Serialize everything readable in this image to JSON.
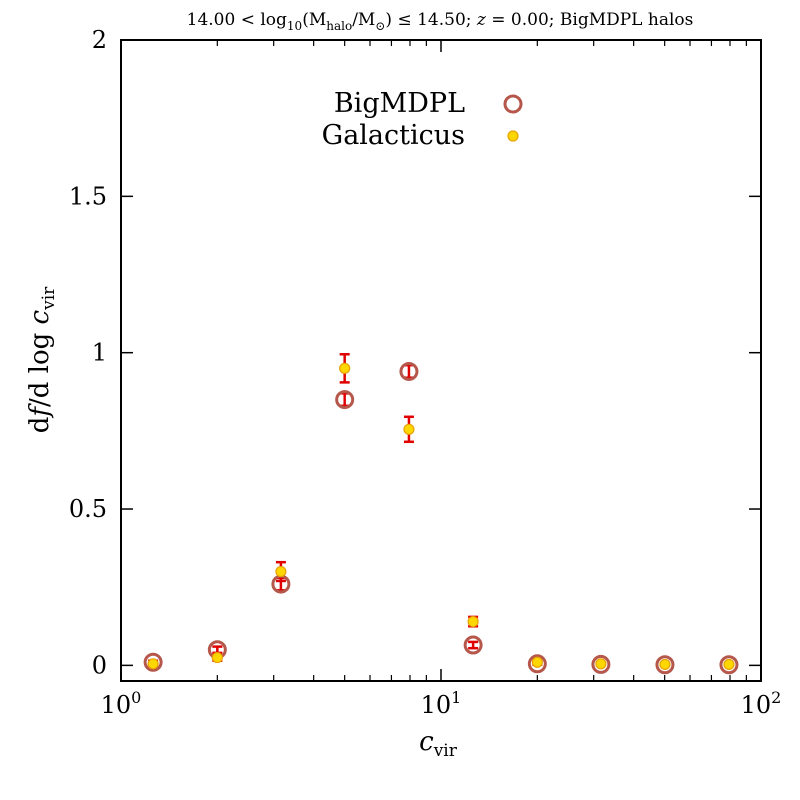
{
  "chart_data": {
    "type": "scatter",
    "title": "14.00 < log10(Mhalo/M⊙) ≤ 14.50; z = 0.00; BigMDPL halos",
    "title_parts": {
      "lower": "14.00 < log",
      "log_sub": "10",
      "mass": "(M",
      "mass_sub": "halo",
      "sun": "/M",
      "sun_sub": "⊙",
      "upper": ") ≤ 14.50; ",
      "z_var": "z",
      "rest": " = 0.00; BigMDPL halos"
    },
    "xlabel": {
      "var": "c",
      "sub": "vir"
    },
    "ylabel": {
      "prefix": "d",
      "var": "f",
      "mid": "/d log ",
      "var2": "c",
      "sub": "vir"
    },
    "xscale": "log",
    "xlim": [
      1,
      100
    ],
    "ylim": [
      -0.05,
      2.0
    ],
    "x_ticks": [
      {
        "value": 1,
        "base": "10",
        "exp": "0"
      },
      {
        "value": 10,
        "base": "10",
        "exp": "1"
      },
      {
        "value": 100,
        "base": "10",
        "exp": "2"
      }
    ],
    "y_ticks": [
      {
        "value": 0,
        "label": "0"
      },
      {
        "value": 0.5,
        "label": "0.5"
      },
      {
        "value": 1.0,
        "label": "1"
      },
      {
        "value": 1.5,
        "label": "1.5"
      },
      {
        "value": 2.0,
        "label": "2"
      }
    ],
    "legend_position": "top-center",
    "series": [
      {
        "name": "BigMDPL",
        "marker": "open-circle",
        "color": "#b5574b",
        "x": [
          1.26,
          2.0,
          3.16,
          5.0,
          7.94,
          12.6,
          20.0,
          31.6,
          50.1,
          79.4
        ],
        "y": [
          0.01,
          0.05,
          0.26,
          0.85,
          0.94,
          0.065,
          0.005,
          0.003,
          0.002,
          0.002
        ],
        "err": [
          0.005,
          0.01,
          0.02,
          0.02,
          0.02,
          0.01,
          0.003,
          0.002,
          0.001,
          0.001
        ]
      },
      {
        "name": "Galacticus",
        "marker": "filled-circle",
        "color": "#ffd700",
        "edge_color": "#e8a200",
        "x": [
          1.26,
          2.0,
          3.16,
          5.0,
          7.94,
          12.6,
          20.0,
          31.6,
          50.1,
          79.4
        ],
        "y": [
          0.005,
          0.025,
          0.3,
          0.95,
          0.755,
          0.14,
          0.01,
          0.005,
          0.003,
          0.003
        ],
        "err": [
          0.004,
          0.01,
          0.03,
          0.045,
          0.04,
          0.015,
          0.004,
          0.002,
          0.001,
          0.001
        ]
      }
    ],
    "errorbar_color": "#e00000"
  }
}
